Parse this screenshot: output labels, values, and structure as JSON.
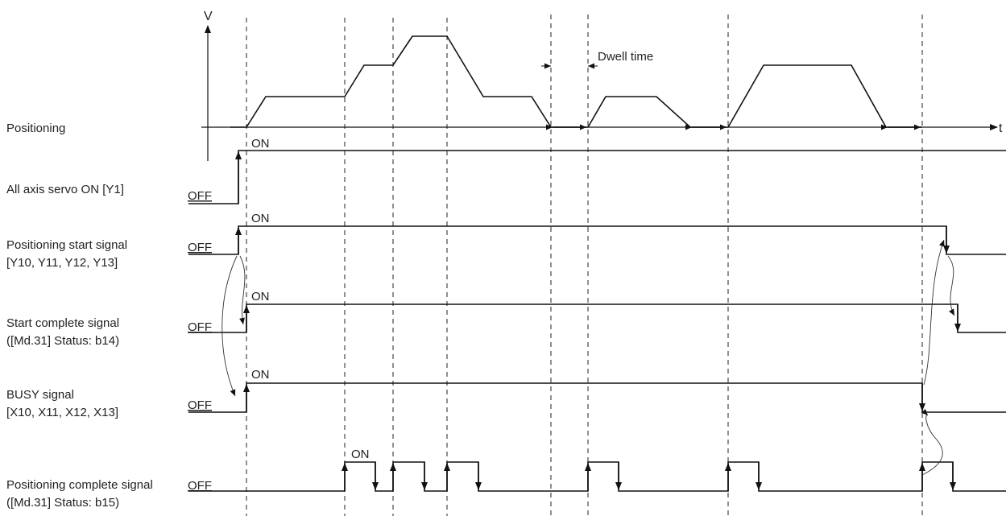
{
  "axis_labels": {
    "velocity": "V",
    "time": "t"
  },
  "annotations": {
    "dwell": "Dwell time"
  },
  "states": {
    "on": "ON",
    "off": "OFF"
  },
  "signals": [
    {
      "id": "positioning",
      "lines": [
        "Positioning"
      ]
    },
    {
      "id": "servo",
      "lines": [
        "All axis servo ON [Y1]"
      ]
    },
    {
      "id": "start",
      "lines": [
        "Positioning start signal",
        "[Y10, Y11, Y12, Y13]"
      ]
    },
    {
      "id": "startcomplete",
      "lines": [
        "Start complete signal",
        "([Md.31] Status: b14)"
      ]
    },
    {
      "id": "busy",
      "lines": [
        "BUSY signal",
        "[X10, X11, X12, X13]"
      ]
    },
    {
      "id": "poscomplete",
      "lines": [
        "Positioning complete signal",
        "([Md.31] Status: b15)"
      ]
    }
  ]
}
